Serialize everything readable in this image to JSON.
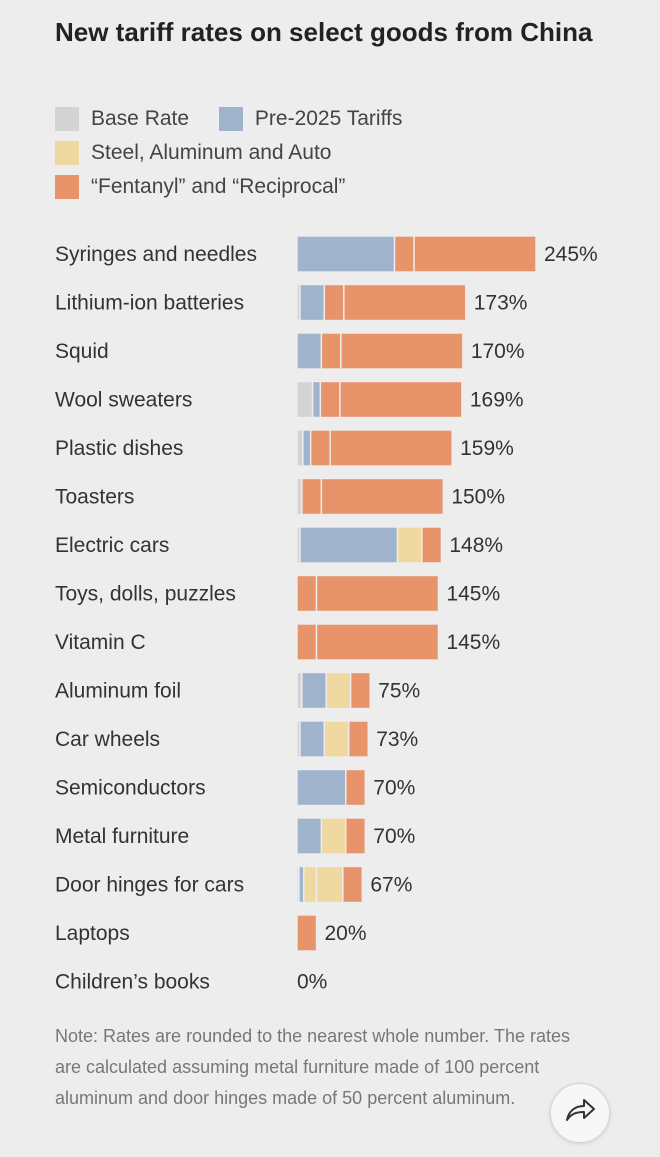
{
  "chart_data": {
    "type": "bar",
    "orientation": "horizontal",
    "stacked": true,
    "title": "New tariff rates on select goods from China",
    "legend": [
      {
        "key": "base",
        "label": "Base Rate",
        "color": "#d3d3d3"
      },
      {
        "key": "pre2025",
        "label": "Pre-2025 Tariffs",
        "color": "#9fb3cd"
      },
      {
        "key": "steel",
        "label": "Steel, Aluminum and Auto",
        "color": "#efd9a0"
      },
      {
        "key": "fent",
        "label": "“Fentanyl” and “Reciprocal”",
        "color": "#e8946b"
      }
    ],
    "categories": [
      "Syringes and needles",
      "Lithium-ion batteries",
      "Squid",
      "Wool sweaters",
      "Plastic dishes",
      "Toasters",
      "Electric cars",
      "Toys, dolls, puzzles",
      "Vitamin C",
      "Aluminum foil",
      "Car wheels",
      "Semiconductors",
      "Metal furniture",
      "Door hinges for cars",
      "Laptops",
      "Children’s books"
    ],
    "totals": [
      245,
      173,
      170,
      169,
      159,
      150,
      148,
      145,
      145,
      75,
      73,
      70,
      70,
      67,
      20,
      0
    ],
    "value_labels": [
      "245%",
      "173%",
      "170%",
      "169%",
      "159%",
      "150%",
      "148%",
      "145%",
      "145%",
      "75%",
      "73%",
      "70%",
      "70%",
      "67%",
      "20%",
      "0%"
    ],
    "segments": [
      [
        {
          "s": "pre2025",
          "v": 100
        },
        {
          "s": "fent",
          "v": 20
        },
        {
          "s": "fent",
          "v": 125
        }
      ],
      [
        {
          "s": "base",
          "v": 3
        },
        {
          "s": "pre2025",
          "v": 25
        },
        {
          "s": "fent",
          "v": 20
        },
        {
          "s": "fent",
          "v": 125
        }
      ],
      [
        {
          "s": "pre2025",
          "v": 25
        },
        {
          "s": "fent",
          "v": 20
        },
        {
          "s": "fent",
          "v": 125
        }
      ],
      [
        {
          "s": "base",
          "v": 16
        },
        {
          "s": "pre2025",
          "v": 8
        },
        {
          "s": "fent",
          "v": 20
        },
        {
          "s": "fent",
          "v": 125
        }
      ],
      [
        {
          "s": "base",
          "v": 6
        },
        {
          "s": "pre2025",
          "v": 8
        },
        {
          "s": "fent",
          "v": 20
        },
        {
          "s": "fent",
          "v": 125
        }
      ],
      [
        {
          "s": "base",
          "v": 5
        },
        {
          "s": "fent",
          "v": 20
        },
        {
          "s": "fent",
          "v": 125
        }
      ],
      [
        {
          "s": "base",
          "v": 3
        },
        {
          "s": "pre2025",
          "v": 100
        },
        {
          "s": "steel",
          "v": 25
        },
        {
          "s": "fent",
          "v": 20
        }
      ],
      [
        {
          "s": "fent",
          "v": 20
        },
        {
          "s": "fent",
          "v": 125
        }
      ],
      [
        {
          "s": "fent",
          "v": 20
        },
        {
          "s": "fent",
          "v": 125
        }
      ],
      [
        {
          "s": "base",
          "v": 5
        },
        {
          "s": "pre2025",
          "v": 25
        },
        {
          "s": "steel",
          "v": 25
        },
        {
          "s": "fent",
          "v": 20
        }
      ],
      [
        {
          "s": "base",
          "v": 3
        },
        {
          "s": "pre2025",
          "v": 25
        },
        {
          "s": "steel",
          "v": 25
        },
        {
          "s": "fent",
          "v": 20
        }
      ],
      [
        {
          "s": "pre2025",
          "v": 50
        },
        {
          "s": "fent",
          "v": 20
        }
      ],
      [
        {
          "s": "pre2025",
          "v": 25
        },
        {
          "s": "steel",
          "v": 25
        },
        {
          "s": "fent",
          "v": 20
        }
      ],
      [
        {
          "s": "base",
          "v": 2
        },
        {
          "s": "pre2025",
          "v": 5
        },
        {
          "s": "steel",
          "v": 13
        },
        {
          "s": "steel",
          "v": 27
        },
        {
          "s": "fent",
          "v": 20
        }
      ],
      [
        {
          "s": "fent",
          "v": 20
        }
      ],
      []
    ],
    "xlim": [
      0,
      245
    ],
    "grid": false,
    "legend_placement": "top-left"
  },
  "note": "Note: Rates are rounded to the nearest whole number. The rates are calculated assuming metal furniture made of 100 percent aluminum and door hinges made of 50 percent aluminum.",
  "share_icon": "share-arrow-icon"
}
